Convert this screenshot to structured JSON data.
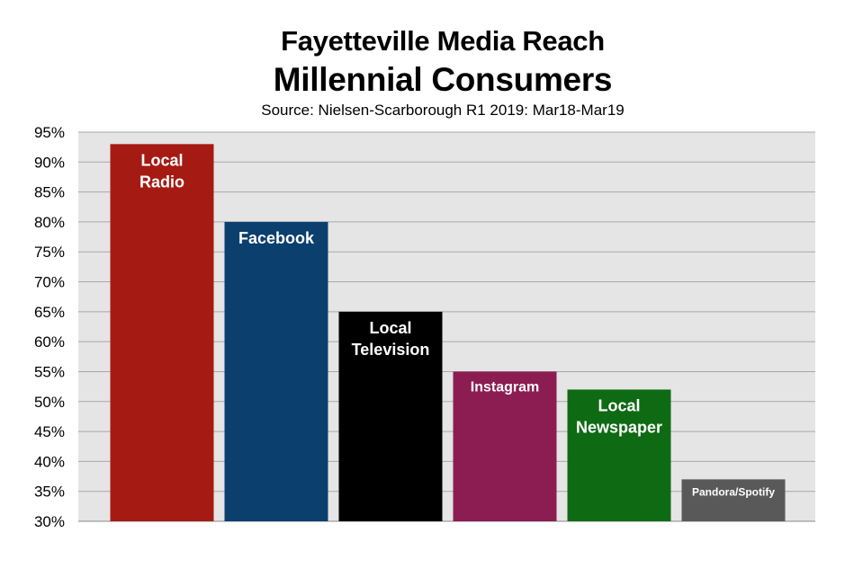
{
  "chart_data": {
    "type": "bar",
    "title": "Fayetteville Media Reach",
    "subtitle": "Millennial Consumers",
    "source": "Source: Nielsen-Scarborough R1 2019: Mar18-Mar19",
    "ylim": [
      30,
      95
    ],
    "yticks": [
      "30%",
      "35%",
      "40%",
      "45%",
      "50%",
      "55%",
      "60%",
      "65%",
      "70%",
      "75%",
      "80%",
      "85%",
      "90%",
      "95%"
    ],
    "grid": true,
    "bars": [
      {
        "label": [
          "Local",
          "Radio"
        ],
        "value": 93,
        "color": "#a51b14",
        "label_size": "large"
      },
      {
        "label": [
          "Facebook"
        ],
        "value": 80,
        "color": "#0b3f6e",
        "label_size": "large"
      },
      {
        "label": [
          "Local",
          "Television"
        ],
        "value": 65,
        "color": "#000000",
        "label_size": "large"
      },
      {
        "label": [
          "Instagram"
        ],
        "value": 55,
        "color": "#8b1d53",
        "label_size": "medium"
      },
      {
        "label": [
          "Local",
          "Newspaper"
        ],
        "value": 52,
        "color": "#0f6a14",
        "label_size": "large"
      },
      {
        "label": [
          "Pandora/Spotify"
        ],
        "value": 37,
        "color": "#595959",
        "label_size": "small"
      }
    ],
    "colors": {
      "plot_background": "#e5e5e5",
      "gridline": "#a8a8a8",
      "bar_label": "#ffffff"
    }
  }
}
